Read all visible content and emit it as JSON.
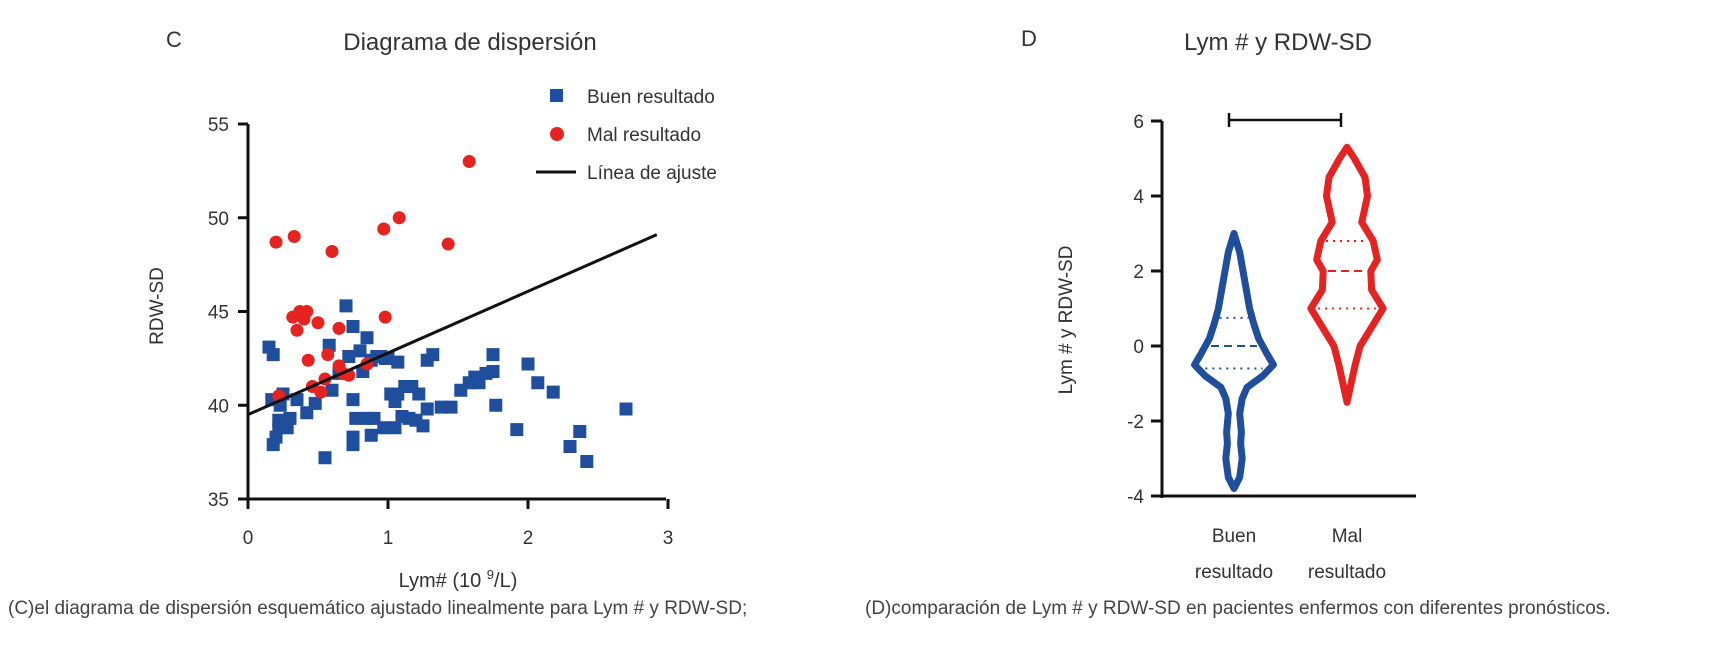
{
  "captions": {
    "c": "(C)el diagrama de dispersión esquemático ajustado linealmente para Lym # y RDW-SD;",
    "d": "(D)comparación de Lym # y RDW-SD en pacientes enfermos con diferentes pronósticos."
  },
  "colors": {
    "good": "#1f4e9c",
    "bad": "#e52320",
    "fit": "#111111",
    "axis": "#111111",
    "text": "#333333"
  },
  "chart_data": [
    {
      "panel_letter": "C",
      "type": "scatter",
      "title": "Diagrama de dispersión",
      "xlabel": "Lym# (10 9/L)",
      "xlabel_base": "Lym# (10 ",
      "xlabel_sup": "9",
      "xlabel_tail": "/L)",
      "ylabel": "RDW-SD",
      "xlim": [
        0,
        3
      ],
      "ylim": [
        35,
        55
      ],
      "xticks": [
        "0",
        "1",
        "2",
        "3"
      ],
      "yticks": [
        "35",
        "40",
        "45",
        "50",
        "55"
      ],
      "legend": {
        "position": "top-right",
        "labels": [
          "Buen resultado",
          "Mal resultado",
          "Línea de ajuste"
        ]
      },
      "fit_line": {
        "x": [
          0,
          2.92
        ],
        "y": [
          39.5,
          49.1
        ]
      },
      "series": [
        {
          "name": "Buen resultado",
          "marker": "square",
          "points": [
            [
              0.15,
              43.1
            ],
            [
              0.18,
              42.7
            ],
            [
              0.17,
              40.3
            ],
            [
              0.18,
              37.9
            ],
            [
              0.2,
              38.3
            ],
            [
              0.22,
              38.8
            ],
            [
              0.22,
              39.2
            ],
            [
              0.23,
              40.0
            ],
            [
              0.25,
              40.6
            ],
            [
              0.28,
              38.8
            ],
            [
              0.3,
              39.3
            ],
            [
              0.35,
              40.3
            ],
            [
              0.42,
              39.6
            ],
            [
              0.48,
              40.1
            ],
            [
              0.55,
              37.2
            ],
            [
              0.58,
              43.2
            ],
            [
              0.6,
              40.8
            ],
            [
              0.65,
              41.7
            ],
            [
              0.7,
              45.3
            ],
            [
              0.72,
              42.6
            ],
            [
              0.75,
              44.2
            ],
            [
              0.75,
              40.3
            ],
            [
              0.75,
              37.9
            ],
            [
              0.75,
              38.3
            ],
            [
              0.77,
              39.3
            ],
            [
              0.8,
              42.9
            ],
            [
              0.82,
              41.8
            ],
            [
              0.85,
              43.6
            ],
            [
              0.85,
              39.3
            ],
            [
              0.88,
              42.4
            ],
            [
              0.88,
              38.4
            ],
            [
              0.9,
              39.3
            ],
            [
              0.92,
              42.6
            ],
            [
              0.95,
              42.6
            ],
            [
              0.97,
              38.8
            ],
            [
              0.98,
              42.5
            ],
            [
              1.0,
              42.5
            ],
            [
              1.02,
              40.6
            ],
            [
              1.05,
              40.2
            ],
            [
              1.05,
              38.8
            ],
            [
              1.07,
              42.3
            ],
            [
              1.07,
              40.6
            ],
            [
              1.1,
              39.4
            ],
            [
              1.12,
              41.0
            ],
            [
              1.15,
              39.3
            ],
            [
              1.17,
              41.0
            ],
            [
              1.2,
              39.2
            ],
            [
              1.22,
              40.6
            ],
            [
              1.25,
              38.9
            ],
            [
              1.28,
              42.4
            ],
            [
              1.28,
              39.8
            ],
            [
              1.32,
              42.7
            ],
            [
              1.38,
              39.9
            ],
            [
              1.45,
              39.9
            ],
            [
              1.52,
              40.8
            ],
            [
              1.58,
              41.2
            ],
            [
              1.62,
              41.5
            ],
            [
              1.65,
              41.2
            ],
            [
              1.7,
              41.7
            ],
            [
              1.75,
              42.7
            ],
            [
              1.77,
              40.0
            ],
            [
              1.75,
              41.8
            ],
            [
              1.92,
              38.7
            ],
            [
              2.0,
              42.2
            ],
            [
              2.07,
              41.2
            ],
            [
              2.18,
              40.7
            ],
            [
              2.3,
              37.8
            ],
            [
              2.37,
              38.6
            ],
            [
              2.42,
              37.0
            ],
            [
              2.7,
              39.8
            ]
          ]
        },
        {
          "name": "Mal resultado",
          "marker": "circle",
          "points": [
            [
              0.2,
              48.7
            ],
            [
              0.33,
              49.0
            ],
            [
              0.32,
              44.7
            ],
            [
              0.35,
              44.0
            ],
            [
              0.37,
              45.0
            ],
            [
              0.4,
              44.6
            ],
            [
              0.42,
              45.0
            ],
            [
              0.43,
              42.4
            ],
            [
              0.46,
              41.0
            ],
            [
              0.5,
              44.4
            ],
            [
              0.52,
              40.7
            ],
            [
              0.55,
              41.4
            ],
            [
              0.57,
              42.7
            ],
            [
              0.6,
              48.2
            ],
            [
              0.65,
              44.1
            ],
            [
              0.65,
              42.1
            ],
            [
              0.68,
              41.7
            ],
            [
              0.72,
              41.6
            ],
            [
              0.85,
              42.2
            ],
            [
              0.97,
              49.4
            ],
            [
              0.98,
              44.7
            ],
            [
              1.08,
              50.0
            ],
            [
              1.43,
              48.6
            ],
            [
              1.58,
              53.0
            ],
            [
              0.22,
              40.5
            ]
          ]
        }
      ]
    },
    {
      "panel_letter": "D",
      "type": "violin",
      "title": "Lym # y RDW-SD",
      "ylabel": "Lym # y RDW-SD",
      "ylim": [
        -4,
        6
      ],
      "yticks": [
        "-4",
        "-2",
        "0",
        "2",
        "4",
        "6"
      ],
      "categories": [
        {
          "line1": "Buen",
          "line2": "resultado"
        },
        {
          "line1": "Mal",
          "line2": "resultado"
        }
      ],
      "significance_bracket": {
        "from": 0,
        "to": 1,
        "y": 6.0
      },
      "violins": [
        {
          "name": "Buen resultado",
          "median": 0.0,
          "q1": -0.6,
          "q3": 0.75,
          "profile": [
            [
              -3.8,
              0.0
            ],
            [
              -3.5,
              0.07
            ],
            [
              -3.0,
              0.1
            ],
            [
              -2.6,
              0.08
            ],
            [
              -2.3,
              0.09
            ],
            [
              -1.8,
              0.07
            ],
            [
              -1.4,
              0.1
            ],
            [
              -1.1,
              0.16
            ],
            [
              -0.8,
              0.35
            ],
            [
              -0.5,
              0.48
            ],
            [
              -0.2,
              0.4
            ],
            [
              0.2,
              0.3
            ],
            [
              0.6,
              0.24
            ],
            [
              1.0,
              0.19
            ],
            [
              1.5,
              0.15
            ],
            [
              2.0,
              0.11
            ],
            [
              2.5,
              0.07
            ],
            [
              3.0,
              0.0
            ]
          ]
        },
        {
          "name": "Mal resultado",
          "median": 2.0,
          "q1": 1.0,
          "q3": 2.8,
          "profile": [
            [
              -1.5,
              0.0
            ],
            [
              -1.0,
              0.05
            ],
            [
              -0.5,
              0.1
            ],
            [
              0.0,
              0.16
            ],
            [
              0.5,
              0.3
            ],
            [
              1.0,
              0.44
            ],
            [
              1.5,
              0.3
            ],
            [
              2.0,
              0.29
            ],
            [
              2.3,
              0.37
            ],
            [
              2.8,
              0.32
            ],
            [
              3.3,
              0.18
            ],
            [
              4.0,
              0.25
            ],
            [
              4.5,
              0.22
            ],
            [
              5.0,
              0.09
            ],
            [
              5.3,
              0.0
            ]
          ]
        }
      ]
    }
  ]
}
